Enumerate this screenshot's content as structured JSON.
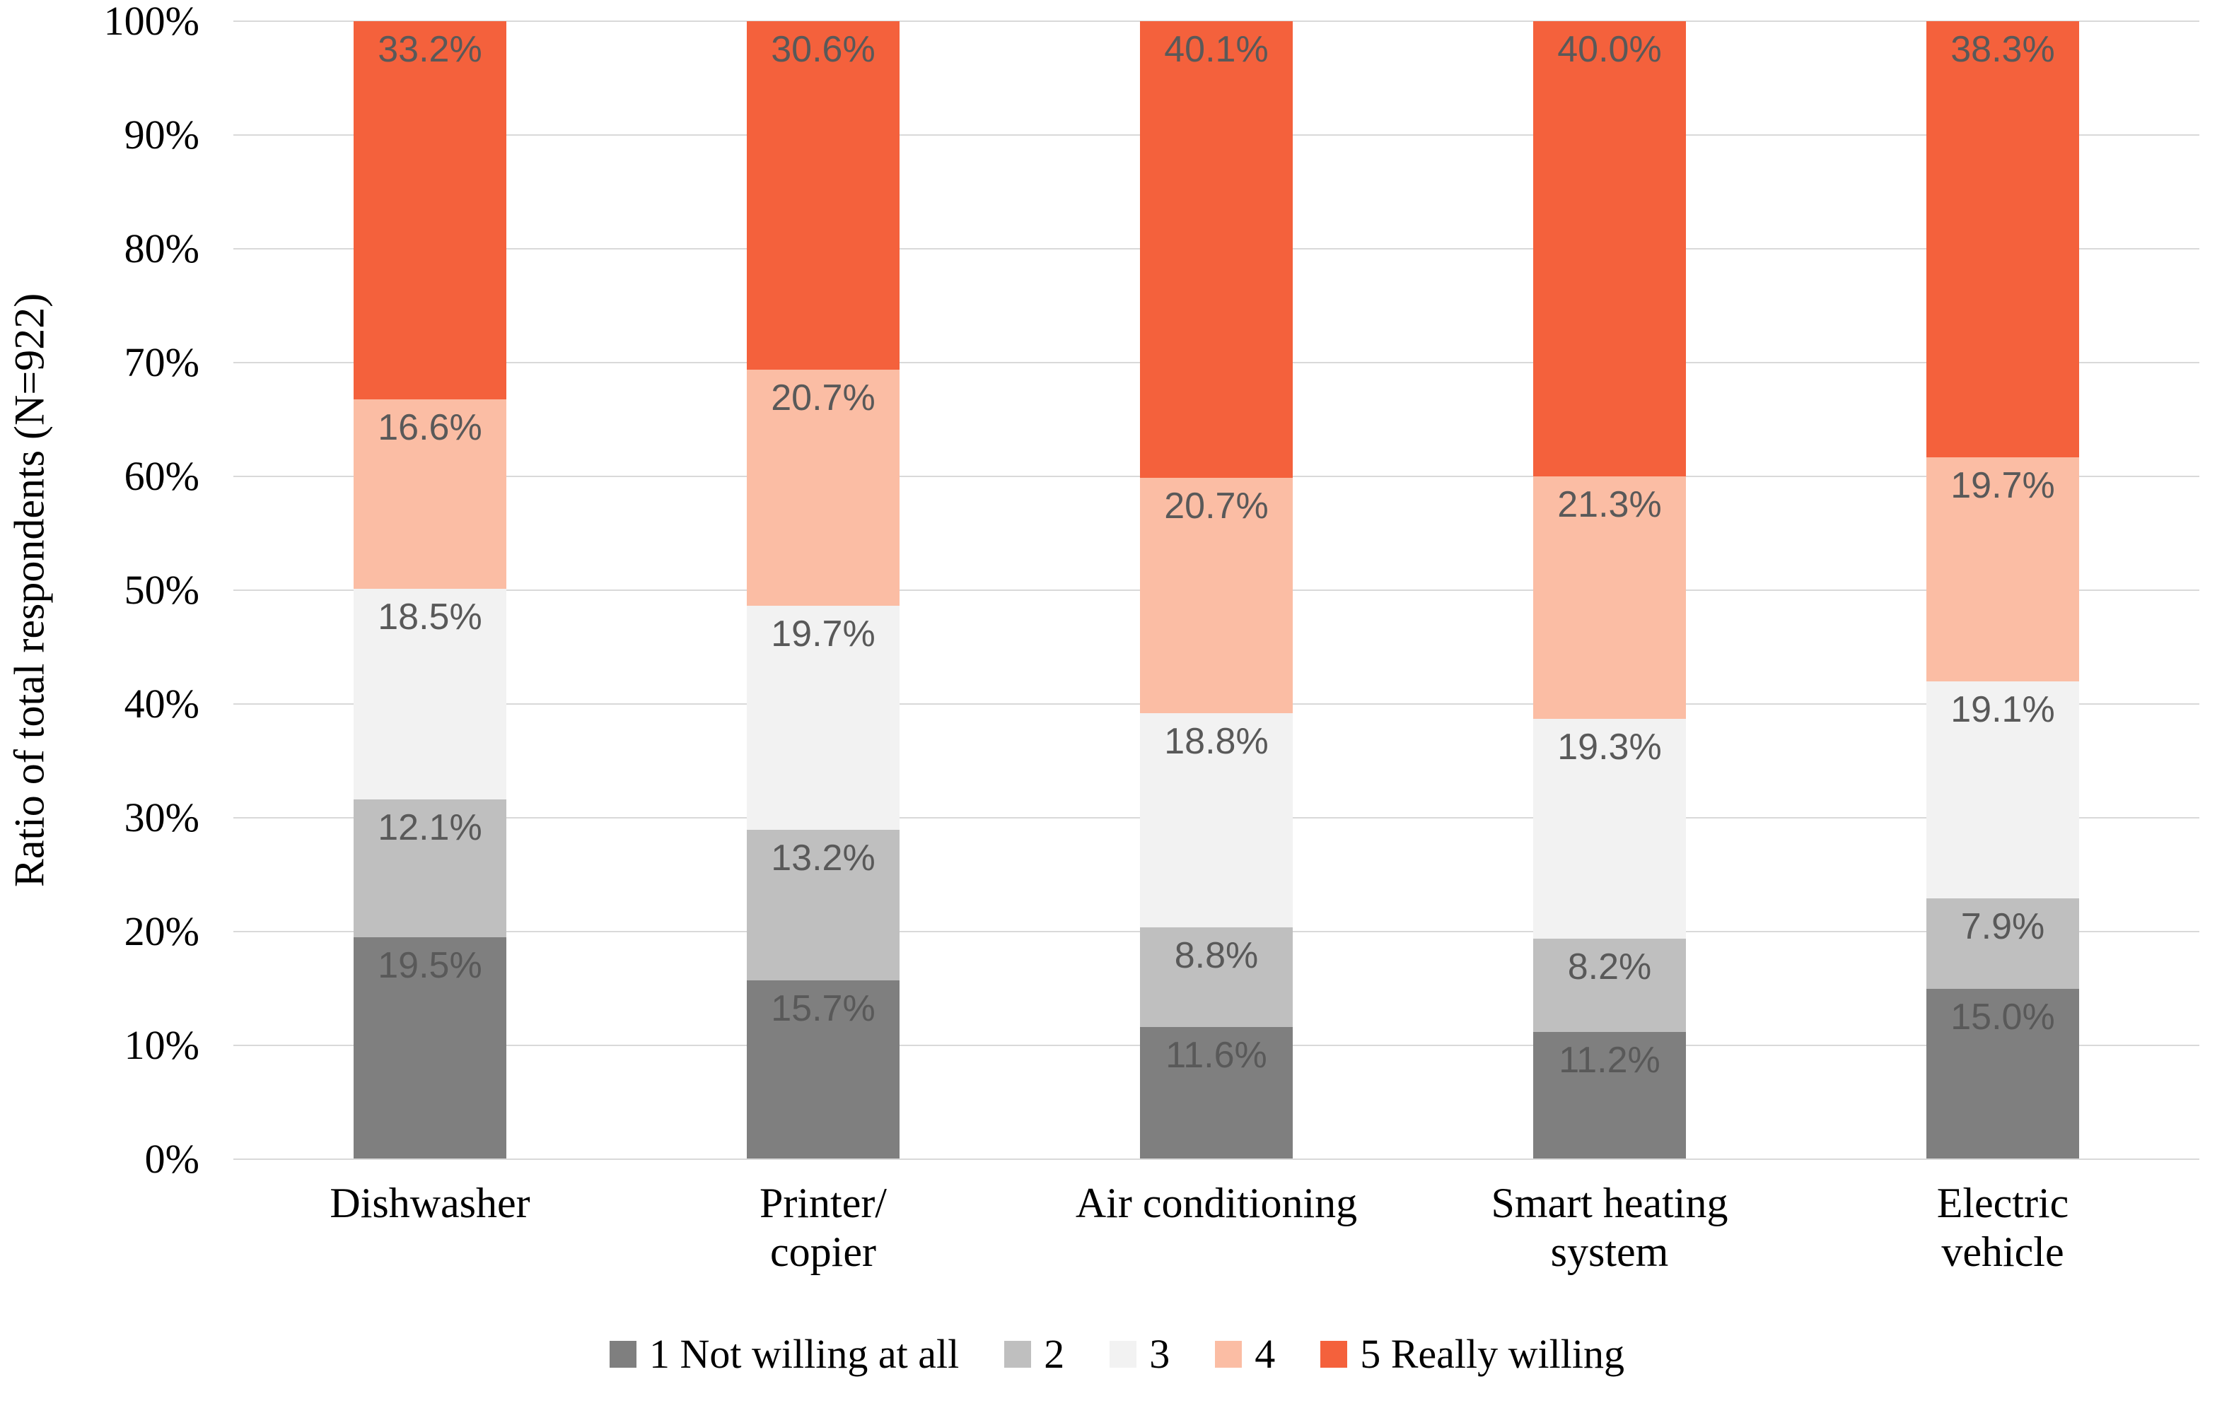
{
  "chart_data": {
    "type": "bar",
    "stacked": true,
    "percent_stacked": true,
    "title": "",
    "xlabel": "",
    "ylabel": "Ratio of total respondents (N=922)",
    "ylim": [
      0,
      100
    ],
    "ytick_step": 10,
    "yticks": [
      "0%",
      "10%",
      "20%",
      "30%",
      "40%",
      "50%",
      "60%",
      "70%",
      "80%",
      "90%",
      "100%"
    ],
    "grid": true,
    "legend_position": "bottom",
    "data_labels": true,
    "label_suffix": "%",
    "categories": [
      "Dishwasher",
      "Printer/\ncopier",
      "Air conditioning",
      "Smart heating\nsystem",
      "Electric\nvehicle"
    ],
    "series": [
      {
        "name": "1 Not willing at all",
        "color": "#7f7f7f",
        "values": [
          19.5,
          15.7,
          11.6,
          11.2,
          15.0
        ]
      },
      {
        "name": "2",
        "color": "#bfbfbf",
        "values": [
          12.1,
          13.2,
          8.8,
          8.2,
          7.9
        ]
      },
      {
        "name": "3",
        "color": "#f2f2f2",
        "values": [
          18.5,
          19.7,
          18.8,
          19.3,
          19.1
        ]
      },
      {
        "name": "4",
        "color": "#fbbda4",
        "values": [
          16.6,
          20.7,
          20.7,
          21.3,
          19.7
        ]
      },
      {
        "name": "5 Really willing",
        "color": "#f4613c",
        "values": [
          33.2,
          30.6,
          40.1,
          40.0,
          38.3
        ]
      }
    ]
  },
  "colors": {
    "gridline": "#d9d9d9",
    "axis_line": "#d9d9d9",
    "data_label_text": "#595959",
    "axis_text": "#000000"
  }
}
